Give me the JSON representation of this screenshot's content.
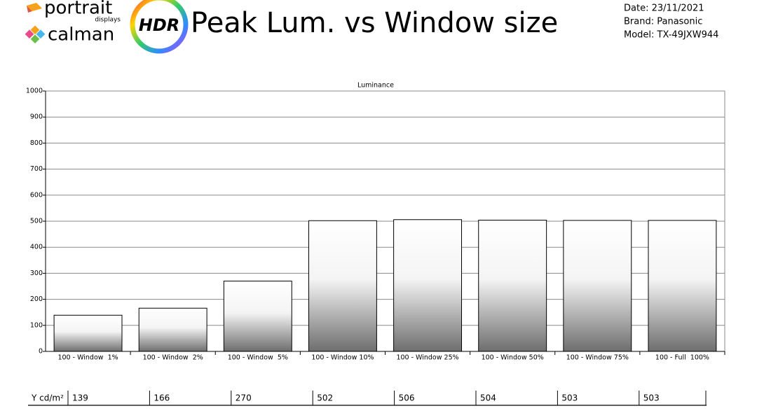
{
  "header": {
    "brand_top": "portrait",
    "brand_sub": "displays",
    "brand_bottom": "calman",
    "badge": "HDR",
    "title": "Peak Lum. vs Window size",
    "date": "Date: 23/11/2021",
    "brand": "Brand: Panasonic",
    "model": "Model: TX-49JXW944"
  },
  "chart_data": {
    "type": "bar",
    "title": "Luminance",
    "categories": [
      "100 - Window  1%",
      "100 - Window  2%",
      "100 - Window  5%",
      "100 - Window 10%",
      "100 - Window 25%",
      "100 - Window 50%",
      "100 - Window 75%",
      "100 - Full  100%"
    ],
    "values": [
      139,
      166,
      270,
      502,
      506,
      504,
      503,
      503
    ],
    "value_row_label": "Y cd/m²",
    "ylim": [
      0,
      1000
    ],
    "yticks": [
      0,
      100,
      200,
      300,
      400,
      500,
      600,
      700,
      800,
      900,
      1000
    ],
    "grid": true
  }
}
